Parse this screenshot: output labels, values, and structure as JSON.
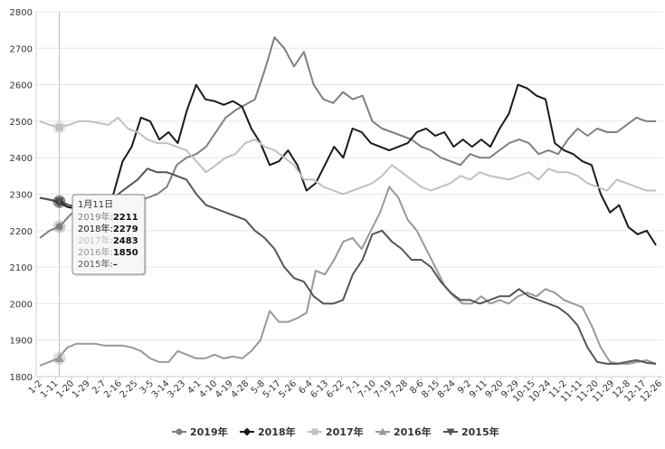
{
  "chart_data": {
    "type": "line",
    "title": "",
    "xlabel": "",
    "ylabel": "",
    "ylim": [
      1800,
      2800
    ],
    "yticks": [
      1800,
      1900,
      2000,
      2100,
      2200,
      2300,
      2400,
      2500,
      2600,
      2700,
      2800
    ],
    "grid": "y",
    "legend_position": "bottom",
    "x_tick_labels": [
      "1-2",
      "1-11",
      "1-20",
      "1-29",
      "2-7",
      "2-16",
      "2-25",
      "3-5",
      "3-14",
      "3-23",
      "4-1",
      "4-10",
      "4-19",
      "4-28",
      "5-8",
      "5-17",
      "5-26",
      "6-4",
      "6-13",
      "6-22",
      "7-1",
      "7-10",
      "7-19",
      "7-28",
      "8-6",
      "8-15",
      "8-24",
      "9-2",
      "9-11",
      "9-20",
      "9-29",
      "10-15",
      "10-24",
      "11-2",
      "11-11",
      "11-20",
      "11-29",
      "12-8",
      "12-17",
      "12-26"
    ],
    "series": [
      {
        "name": "2019年",
        "color": "#808080",
        "marker": "circle",
        "values": [
          2180,
          2200,
          2211,
          2240,
          2265,
          2270,
          2268,
          2262,
          2265,
          2270,
          2280,
          2290,
          2300,
          2320,
          2380,
          2400,
          2410,
          2430,
          2470,
          2510,
          2530,
          2545,
          2560,
          2640,
          2730,
          2700,
          2650,
          2690,
          2600,
          2560,
          2550,
          2580,
          2560,
          2570,
          2500,
          2480,
          2470,
          2460,
          2450,
          2430,
          2420,
          2400,
          2390,
          2380,
          2410,
          2400,
          2400,
          2420,
          2440,
          2450,
          2440,
          2410,
          2420,
          2410,
          2450,
          2480,
          2460,
          2480,
          2470,
          2470,
          2490,
          2510,
          2500,
          2500
        ]
      },
      {
        "name": "2018年",
        "color": "#1a1a1a",
        "marker": "diamond",
        "values": [
          2290,
          2285,
          2279,
          2265,
          2260,
          2262,
          2270,
          2280,
          2300,
          2390,
          2430,
          2510,
          2500,
          2450,
          2470,
          2440,
          2530,
          2600,
          2560,
          2555,
          2545,
          2555,
          2540,
          2480,
          2440,
          2380,
          2390,
          2420,
          2380,
          2310,
          2330,
          2380,
          2430,
          2400,
          2480,
          2470,
          2440,
          2430,
          2420,
          2430,
          2440,
          2470,
          2480,
          2460,
          2470,
          2430,
          2450,
          2430,
          2450,
          2430,
          2480,
          2520,
          2600,
          2590,
          2570,
          2560,
          2440,
          2420,
          2410,
          2390,
          2380,
          2300,
          2250,
          2270,
          2210,
          2190,
          2200,
          2160
        ]
      },
      {
        "name": "2017年",
        "color": "#c0c0c0",
        "marker": "square",
        "values": [
          2500,
          2490,
          2483,
          2490,
          2500,
          2500,
          2495,
          2490,
          2510,
          2480,
          2470,
          2450,
          2440,
          2440,
          2430,
          2420,
          2390,
          2360,
          2380,
          2400,
          2410,
          2440,
          2450,
          2430,
          2420,
          2400,
          2380,
          2340,
          2340,
          2320,
          2310,
          2300,
          2310,
          2320,
          2330,
          2350,
          2380,
          2360,
          2340,
          2320,
          2310,
          2320,
          2330,
          2350,
          2340,
          2360,
          2350,
          2345,
          2340,
          2350,
          2360,
          2340,
          2370,
          2360,
          2360,
          2350,
          2330,
          2320,
          2310,
          2340,
          2330,
          2320,
          2310,
          2310
        ]
      },
      {
        "name": "2016年",
        "color": "#999999",
        "marker": "triangle-up",
        "values": [
          1830,
          1840,
          1850,
          1880,
          1890,
          1890,
          1890,
          1885,
          1885,
          1885,
          1880,
          1870,
          1850,
          1840,
          1840,
          1870,
          1860,
          1850,
          1850,
          1860,
          1850,
          1855,
          1850,
          1870,
          1900,
          1980,
          1950,
          1950,
          1960,
          1975,
          2090,
          2080,
          2120,
          2170,
          2180,
          2150,
          2200,
          2250,
          2320,
          2290,
          2230,
          2200,
          2150,
          2100,
          2050,
          2020,
          2000,
          2000,
          2020,
          2000,
          2010,
          2000,
          2020,
          2030,
          2020,
          2040,
          2030,
          2010,
          2000,
          1990,
          1940,
          1880,
          1840,
          1835,
          1835,
          1840,
          1845,
          1835
        ]
      },
      {
        "name": "2015年",
        "color": "#555555",
        "marker": "triangle-down",
        "values": [
          2290,
          2285,
          2280,
          2270,
          2265,
          2262,
          2265,
          2270,
          2300,
          2320,
          2340,
          2370,
          2360,
          2360,
          2350,
          2340,
          2300,
          2270,
          2260,
          2250,
          2240,
          2230,
          2200,
          2180,
          2150,
          2100,
          2070,
          2060,
          2020,
          2000,
          2000,
          2010,
          2080,
          2120,
          2190,
          2200,
          2170,
          2150,
          2120,
          2120,
          2100,
          2060,
          2030,
          2010,
          2010,
          2000,
          2010,
          2020,
          2020,
          2040,
          2020,
          2010,
          2000,
          1990,
          1970,
          1940,
          1880,
          1840,
          1835,
          1835,
          1840,
          1845,
          1838,
          1835
        ]
      }
    ],
    "tooltip": {
      "title": "1月11日",
      "rows": [
        {
          "name": "2019年",
          "value": "2211"
        },
        {
          "name": "2018年",
          "value": "2279"
        },
        {
          "name": "2017年",
          "value": "2483"
        },
        {
          "name": "2016年",
          "value": "1850"
        },
        {
          "name": "2015年",
          "value": "–"
        }
      ]
    }
  }
}
